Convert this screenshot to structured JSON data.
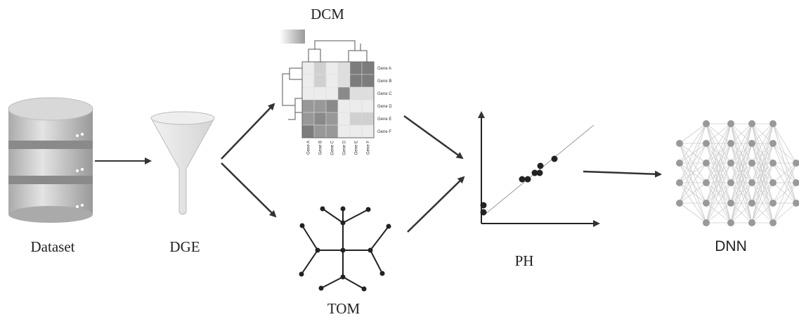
{
  "nodes": [
    {
      "label": "Dataset"
    },
    {
      "label": "DGE"
    },
    {
      "label": "DCM"
    },
    {
      "label": "TOM"
    },
    {
      "label": "PH"
    },
    {
      "label": "DNN"
    }
  ],
  "heatmap": {
    "row_labels": [
      "Gene A",
      "Gene B",
      "Gene C",
      "Gene D",
      "Gene E",
      "Gene F"
    ],
    "col_labels": [
      "Gene A",
      "Gene B",
      "Gene C",
      "Gene D",
      "Gene E",
      "Gene F"
    ]
  }
}
